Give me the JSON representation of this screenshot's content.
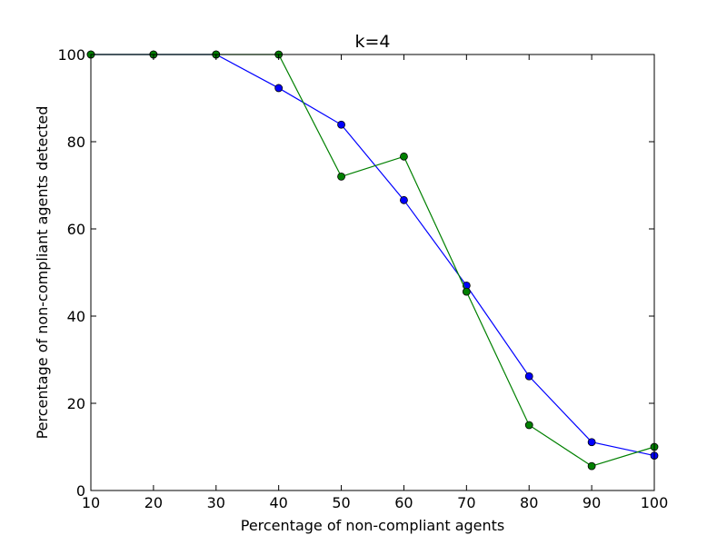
{
  "chart_data": {
    "type": "line",
    "title": "k=4",
    "xlabel": "Percentage of non-compliant agents",
    "ylabel": "Percentage of non-compliant agents detected",
    "xlim": [
      10,
      100
    ],
    "ylim": [
      0,
      100
    ],
    "xticks": [
      10,
      20,
      30,
      40,
      50,
      60,
      70,
      80,
      90,
      100
    ],
    "yticks": [
      0,
      20,
      40,
      60,
      80,
      100
    ],
    "grid": false,
    "x": [
      10,
      20,
      30,
      40,
      50,
      60,
      70,
      80,
      90,
      100
    ],
    "series": [
      {
        "color": "#0000ff",
        "marker": "circle",
        "values": [
          100,
          100,
          100,
          92.3,
          83.9,
          66.6,
          47.0,
          26.2,
          11.1,
          8.0
        ]
      },
      {
        "color": "#008000",
        "marker": "circle",
        "values": [
          100,
          100,
          100,
          100,
          72.0,
          76.6,
          45.6,
          15.0,
          5.6,
          10.0
        ]
      }
    ]
  }
}
